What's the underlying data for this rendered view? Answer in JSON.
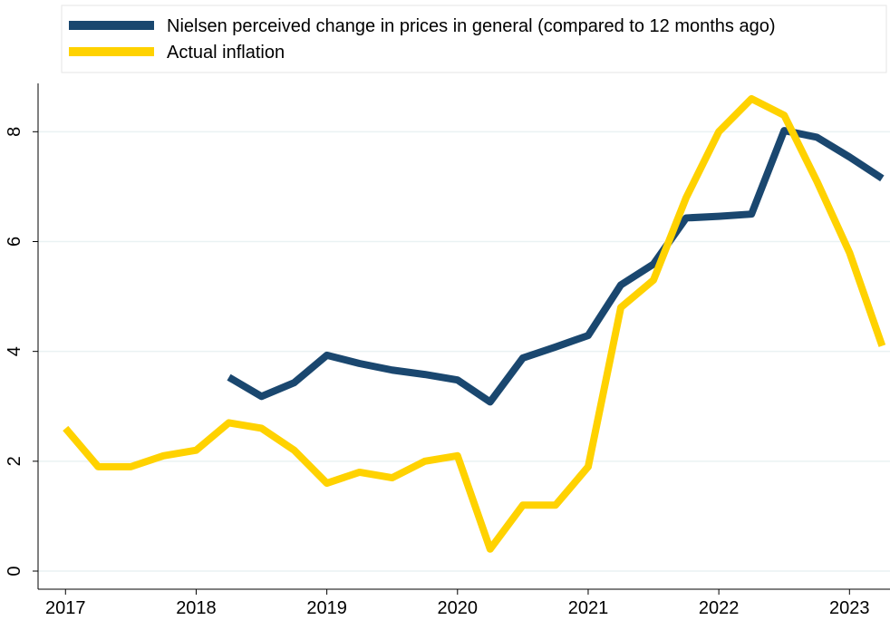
{
  "chart_data": {
    "type": "line",
    "x": [
      2017,
      2017.25,
      2017.5,
      2017.75,
      2018,
      2018.25,
      2018.5,
      2018.75,
      2019,
      2019.25,
      2019.5,
      2019.75,
      2020,
      2020.25,
      2020.5,
      2020.75,
      2021,
      2021.25,
      2021.5,
      2021.75,
      2022,
      2022.25,
      2022.5,
      2022.75,
      2023,
      2023.25
    ],
    "series": [
      {
        "name": "Nielsen perceived change in prices in general (compared to 12 months ago)",
        "color": "#1a476f",
        "values": [
          null,
          null,
          null,
          null,
          null,
          3.53,
          3.18,
          3.43,
          3.93,
          3.78,
          3.66,
          3.58,
          3.48,
          3.08,
          3.88,
          4.08,
          4.29,
          5.21,
          5.59,
          6.43,
          6.46,
          6.5,
          8.02,
          7.9,
          7.54,
          7.15
        ]
      },
      {
        "name": "Actual inflation",
        "color": "#ffd200",
        "values": [
          2.6,
          1.9,
          1.9,
          2.1,
          2.2,
          2.7,
          2.6,
          2.2,
          1.6,
          1.8,
          1.7,
          2.0,
          2.1,
          0.4,
          1.2,
          1.2,
          1.9,
          4.8,
          5.3,
          6.8,
          8.0,
          8.6,
          8.3,
          7.1,
          5.8,
          4.1
        ]
      }
    ],
    "xlim": [
      2016.79,
      2023.31
    ],
    "xticks": [
      2017,
      2018,
      2019,
      2020,
      2021,
      2022,
      2023
    ],
    "ylim": [
      -0.33,
      8.88
    ],
    "yticks": [
      0,
      2,
      4,
      6,
      8
    ],
    "grid": true,
    "legend": "top"
  }
}
